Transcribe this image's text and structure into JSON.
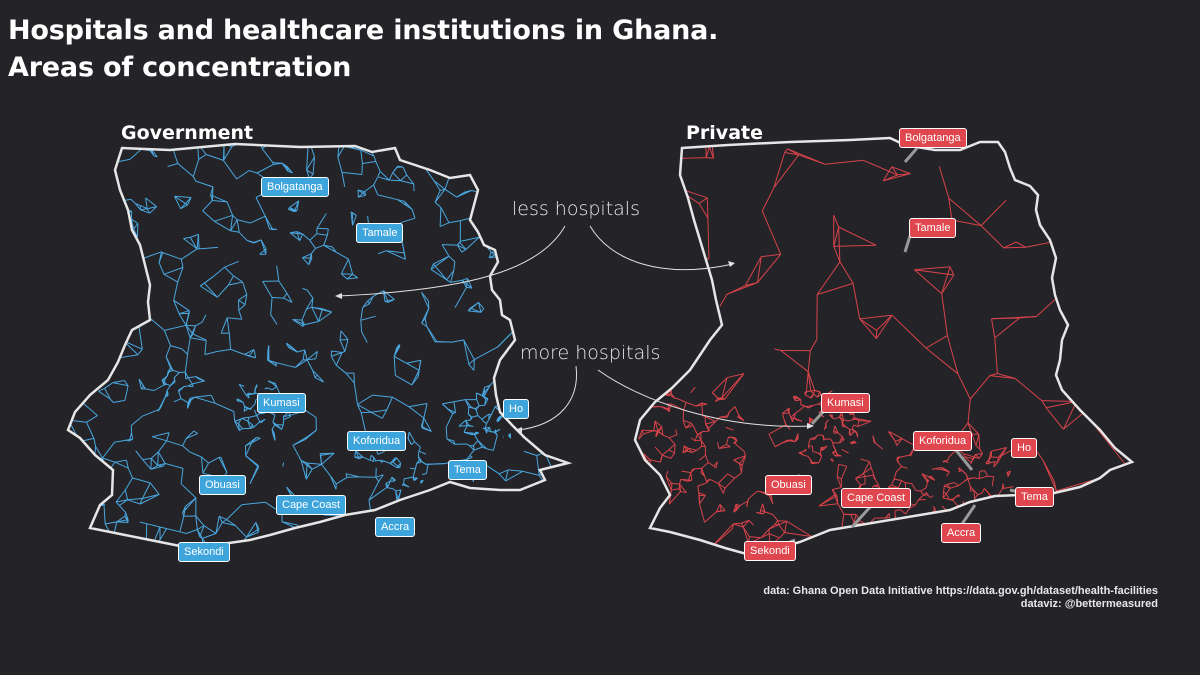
{
  "title_line1": "Hospitals and healthcare institutions in Ghana.",
  "title_line2": "Areas of concentration",
  "panels": {
    "government": {
      "title": "Government",
      "color": "#4aa8e0"
    },
    "private": {
      "title": "Private",
      "color": "#d8434a"
    }
  },
  "annotations": {
    "less": "less hospitals",
    "more": "more hospitals"
  },
  "cities": [
    "Bolgatanga",
    "Tamale",
    "Kumasi",
    "Ho",
    "Koforidua",
    "Tema",
    "Obuasi",
    "Cape Coast",
    "Accra",
    "Sekondi"
  ],
  "credits": {
    "data": "data: Ghana Open Data Initiative https://data.gov.gh/dataset/health-facilities",
    "dataviz": "dataviz: @bettermeasured"
  }
}
